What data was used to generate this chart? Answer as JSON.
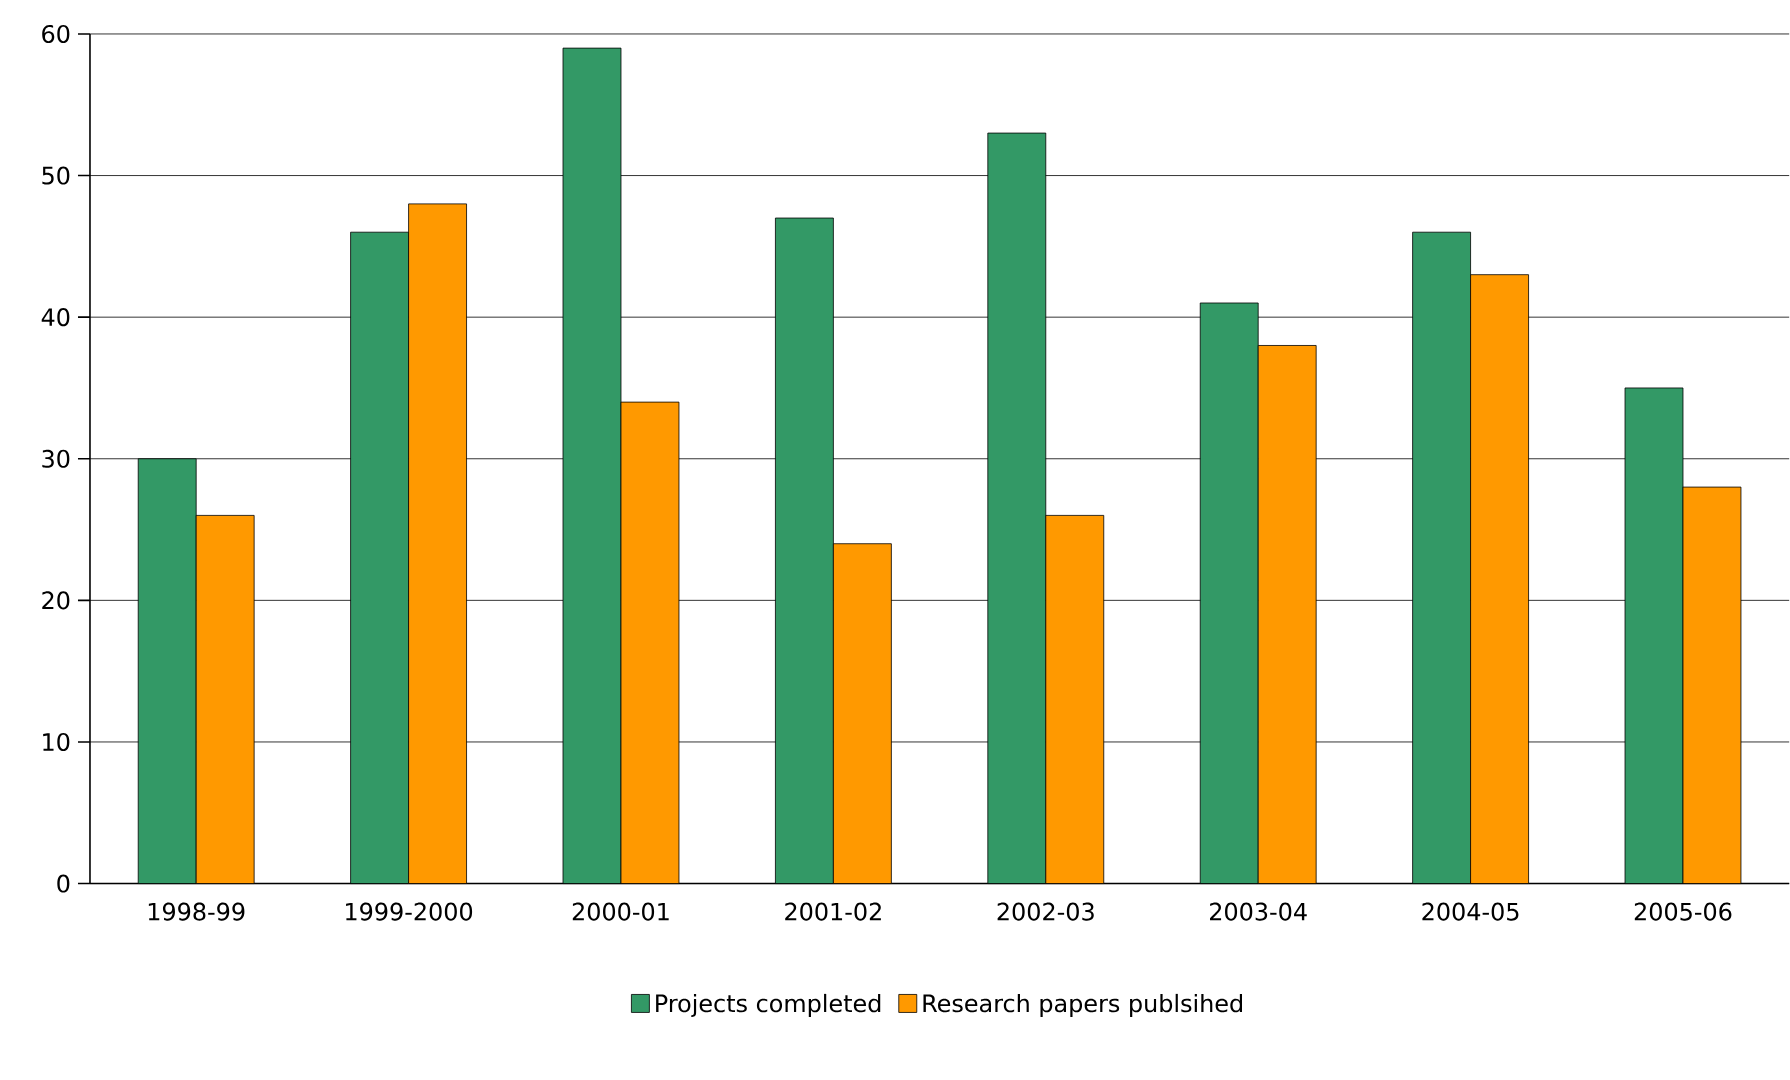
{
  "chart_data": {
    "type": "bar",
    "categories": [
      "1998-99",
      "1999-2000",
      "2000-01",
      "2001-02",
      "2002-03",
      "2003-04",
      "2004-05",
      "2005-06"
    ],
    "series": [
      {
        "name": "Projects completed",
        "color": "#339966",
        "values": [
          30,
          46,
          59,
          47,
          53,
          41,
          46,
          35
        ]
      },
      {
        "name": "Research papers publsihed",
        "color": "#ff9900",
        "values": [
          26,
          48,
          34,
          24,
          26,
          38,
          43,
          28
        ]
      }
    ],
    "ylim": [
      0,
      60
    ],
    "yticks": [
      0,
      10,
      20,
      30,
      40,
      50,
      60
    ],
    "grid": "y",
    "legend": "bottom"
  }
}
